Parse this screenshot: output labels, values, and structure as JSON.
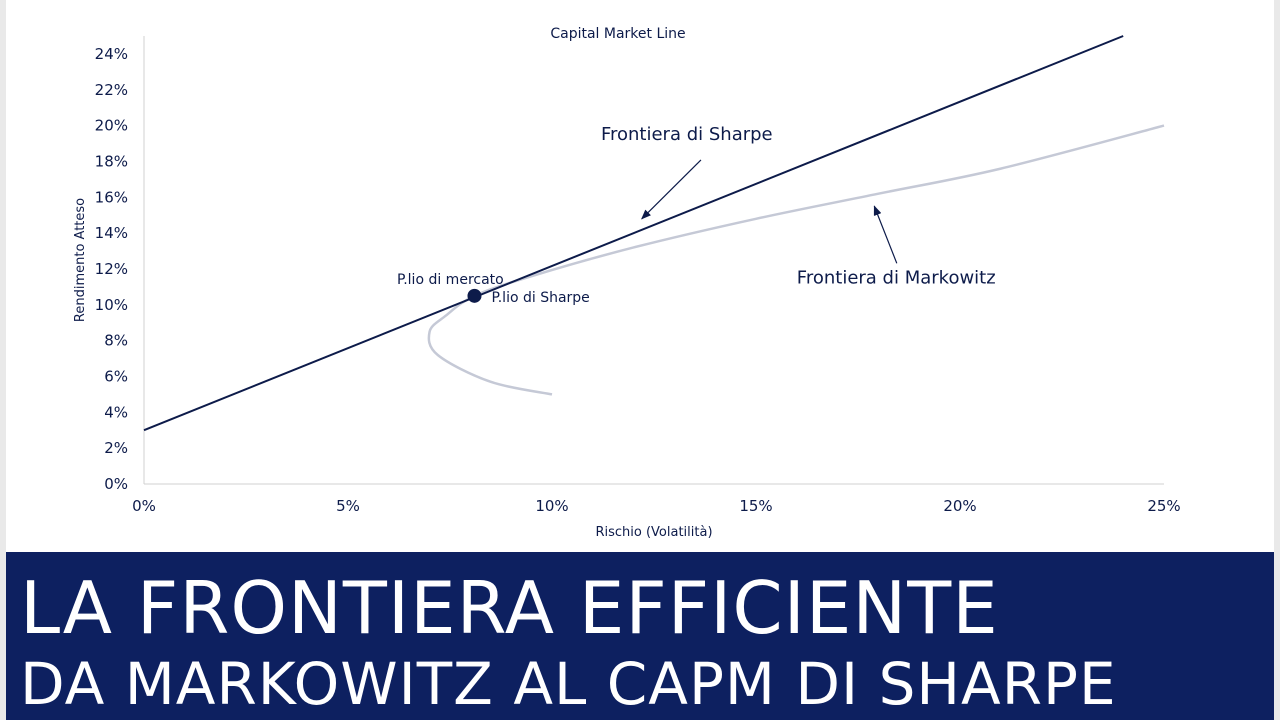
{
  "banner": {
    "line1": "LA FRONTIERA EFFICIENTE",
    "line2": "DA MARKOWITZ AL CAPM DI SHARPE"
  },
  "colors": {
    "navy": "#0d1b4a",
    "banner": "#0d2060",
    "frontier": "#c5c9d6"
  },
  "chart_data": {
    "type": "line",
    "title": "Capital Market Line",
    "xlabel": "Rischio (Volatilità)",
    "ylabel": "Rendimento Atteso",
    "xlim": [
      0,
      25
    ],
    "ylim": [
      0,
      25
    ],
    "x_ticks": [
      "0%",
      "5%",
      "10%",
      "15%",
      "20%",
      "25%"
    ],
    "y_ticks": [
      "0%",
      "2%",
      "4%",
      "6%",
      "8%",
      "10%",
      "12%",
      "14%",
      "16%",
      "18%",
      "20%",
      "22%",
      "24%"
    ],
    "grid": false,
    "legend": "none",
    "series": [
      {
        "x": [
          0,
          24
        ],
        "y": [
          3,
          25
        ]
      },
      {
        "x": [
          10,
          8.5,
          7.2,
          7.0,
          7.4,
          8.1,
          9.5,
          12,
          15,
          18,
          21,
          25
        ],
        "y": [
          5,
          5.7,
          7.2,
          8.5,
          9.4,
          10.5,
          11.6,
          13.2,
          14.8,
          16.2,
          17.6,
          20
        ]
      }
    ],
    "points": [
      {
        "x": 8.1,
        "y": 10.5,
        "label": "P.lio di Sharpe"
      }
    ],
    "annotations": [
      {
        "text": "Frontiera di Sharpe",
        "x": 11.2,
        "y": 19.2,
        "arrow_to": [
          12.2,
          14.8
        ]
      },
      {
        "text": "Frontiera di Markowitz",
        "x": 16,
        "y": 11.2,
        "arrow_to": [
          17.9,
          15.5
        ]
      },
      {
        "text": "P.lio di mercato",
        "x": 6.2,
        "y": 11.5
      }
    ]
  }
}
